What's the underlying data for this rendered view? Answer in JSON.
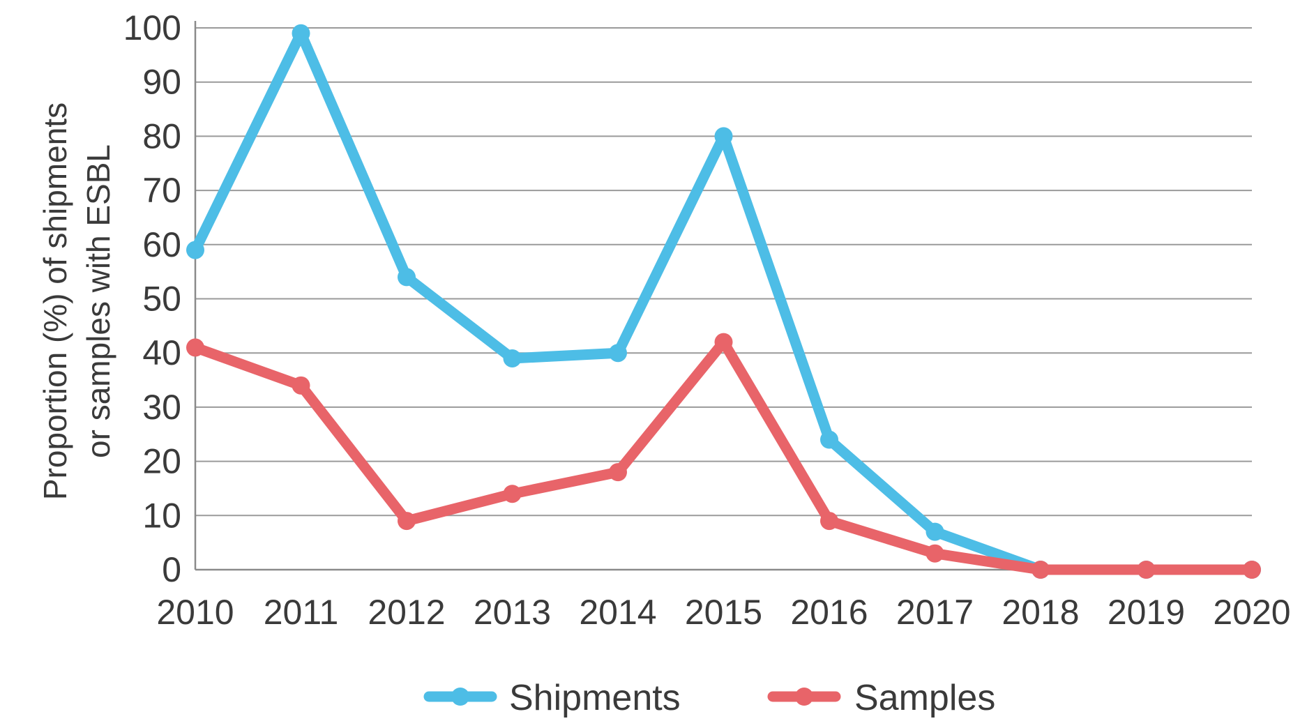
{
  "chart_data": {
    "type": "line",
    "x": [
      "2010",
      "2011",
      "2012",
      "2013",
      "2014",
      "2015",
      "2016",
      "2017",
      "2018",
      "2019",
      "2020"
    ],
    "ylabel_lines": [
      "Proportion (%) of shipments",
      "or samples with ESBL"
    ],
    "xlabel": "",
    "title": "",
    "ylim": [
      0,
      100
    ],
    "yticks": [
      "0",
      "10",
      "20",
      "30",
      "40",
      "50",
      "60",
      "70",
      "80",
      "90",
      "100"
    ],
    "grid": true,
    "legend_position": "bottom-center",
    "series": [
      {
        "name": "Shipments",
        "color": "#4dbde6",
        "values": [
          59,
          99,
          54,
          39,
          40,
          80,
          24,
          7,
          0,
          0,
          0
        ]
      },
      {
        "name": "Samples",
        "color": "#e86469",
        "values": [
          41,
          34,
          9,
          14,
          18,
          42,
          9,
          3,
          0,
          0,
          0
        ]
      }
    ]
  }
}
